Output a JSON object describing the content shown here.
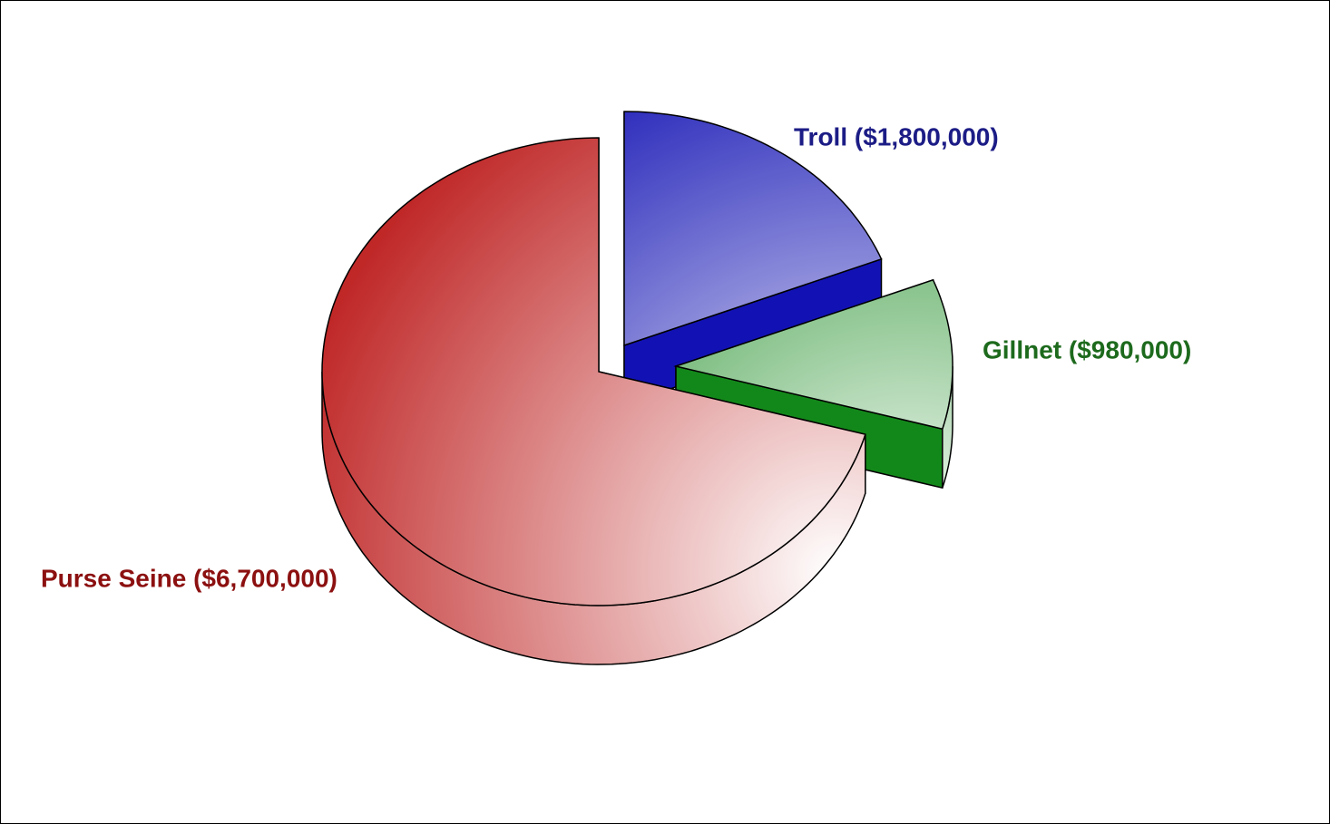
{
  "chart_data": {
    "type": "pie",
    "values": [
      1800000,
      980000,
      6700000
    ],
    "value_labels": [
      "Troll ($1,800,000)",
      "Gillnet ($980,000)",
      "Purse Seine ($6,700,000)"
    ],
    "colors": [
      "#1212b4",
      "#13881a",
      "#c02828"
    ],
    "label_colors": [
      "#1c1c86",
      "#1d6a1d",
      "#8c1010"
    ]
  }
}
